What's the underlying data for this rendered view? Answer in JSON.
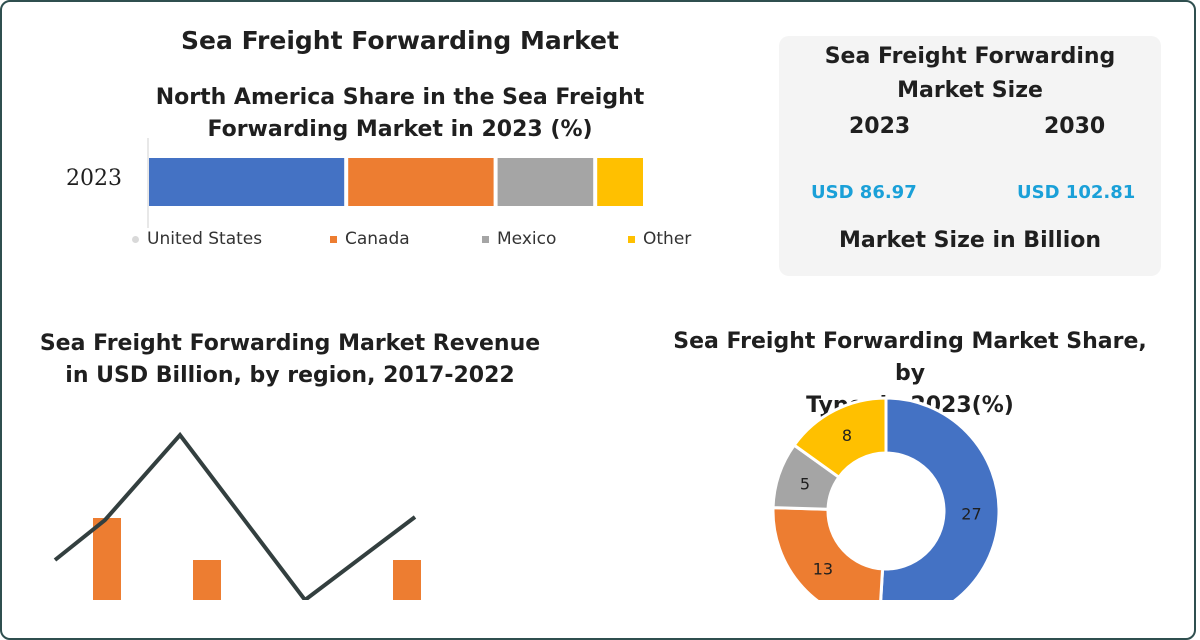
{
  "title": "Sea Freight Forwarding  Market",
  "market_size": {
    "title_line1": "Sea Freight Forwarding",
    "title_line2": "Market Size",
    "year_a": "2023",
    "year_b": "2030",
    "value_a": "USD 86.97",
    "value_b": "USD 102.81",
    "unit_label": "Market Size in Billion"
  },
  "colors": {
    "blue": "#4472c4",
    "orange": "#ed7d31",
    "gray": "#a5a5a5",
    "yellow": "#ffc000",
    "line": "#333f3f"
  },
  "chart_data": [
    {
      "type": "bar",
      "stacked": true,
      "orientation": "horizontal",
      "title_line1": "North America Share in the Sea Freight",
      "title_line2": "Forwarding Market in 2023 (%)",
      "categories": [
        "2023"
      ],
      "series": [
        {
          "name": "United States",
          "values": [
            40
          ]
        },
        {
          "name": "Canada",
          "values": [
            30
          ]
        },
        {
          "name": "Mexico",
          "values": [
            20
          ]
        },
        {
          "name": "Other",
          "values": [
            10
          ]
        }
      ],
      "legend": "bottom"
    },
    {
      "type": "bar",
      "title_line1": "Sea Freight Forwarding Market Revenue",
      "title_line2": "in USD Billion, by region, 2017-2022",
      "bars": [
        {
          "x": 2,
          "value": 82
        },
        {
          "x": 4,
          "value": 40
        },
        {
          "x": 8,
          "value": 40
        }
      ],
      "line": [
        {
          "x": 1,
          "value": 40
        },
        {
          "x": 2,
          "value": 80
        },
        {
          "x": 3.5,
          "value": 165
        },
        {
          "x": 6,
          "value": 0
        },
        {
          "x": 8.2,
          "value": 83
        }
      ]
    },
    {
      "type": "pie",
      "donut": true,
      "title_line1": "Sea Freight Forwarding Market Share, by",
      "title_line2": "Type, in 2023(%)",
      "slices": [
        {
          "label": "27",
          "value": 27
        },
        {
          "label": "13",
          "value": 13
        },
        {
          "label": "5",
          "value": 5
        },
        {
          "label": "8",
          "value": 8
        }
      ]
    }
  ]
}
